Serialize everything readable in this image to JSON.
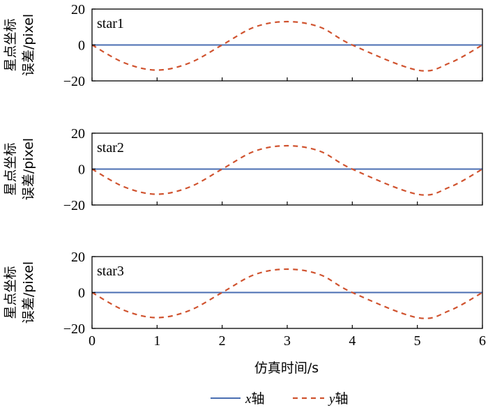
{
  "chart_data": {
    "type": "line",
    "xlabel": "仿真时间/s",
    "xlim": [
      0,
      6
    ],
    "x_ticks": [
      "0",
      "1",
      "2",
      "3",
      "4",
      "5",
      "6"
    ],
    "ylabel_line1": "星点坐标",
    "ylabel_line2": "误差/pixel",
    "ylim": [
      -20,
      20
    ],
    "y_ticks": [
      "20",
      "0",
      "−20"
    ],
    "legend": {
      "placement": "bottom-center",
      "x_label_var": "x",
      "x_label_suffix": "轴",
      "y_label_var": "y",
      "y_label_suffix": "轴"
    },
    "colors": {
      "x_axis_series": "#4a6eb2",
      "y_axis_series": "#d0532f"
    },
    "panels": [
      {
        "label": "star1",
        "x": [
          0,
          0.5,
          1,
          1.5,
          2,
          2.5,
          3,
          3.5,
          4,
          5,
          5.5,
          6
        ],
        "series": [
          {
            "name": "x轴",
            "values": [
              0,
              0,
              0,
              0,
              0,
              0,
              0,
              0,
              0,
              0,
              0,
              0
            ]
          },
          {
            "name": "y轴",
            "values": [
              0,
              -10,
              -14,
              -10,
              0,
              10,
              13,
              10,
              0,
              -14,
              -10,
              0
            ]
          }
        ]
      },
      {
        "label": "star2",
        "x": [
          0,
          0.5,
          1,
          1.5,
          2,
          2.5,
          3,
          3.5,
          4,
          5,
          5.5,
          6
        ],
        "series": [
          {
            "name": "x轴",
            "values": [
              0,
              0,
              0,
              0,
              0,
              0,
              0,
              0,
              0,
              0,
              0,
              0
            ]
          },
          {
            "name": "y轴",
            "values": [
              0,
              -10,
              -14,
              -10,
              0,
              10,
              13,
              10,
              0,
              -14,
              -10,
              0
            ]
          }
        ]
      },
      {
        "label": "star3",
        "x": [
          0,
          0.5,
          1,
          1.5,
          2,
          2.5,
          3,
          3.5,
          4,
          5,
          5.5,
          6
        ],
        "series": [
          {
            "name": "x轴",
            "values": [
              0,
              0,
              0,
              0,
              0,
              0,
              0,
              0,
              0,
              0,
              0,
              0
            ]
          },
          {
            "name": "y轴",
            "values": [
              0,
              -10,
              -14,
              -10,
              0,
              10,
              13,
              10,
              0,
              -14,
              -10,
              0
            ]
          }
        ]
      }
    ]
  }
}
